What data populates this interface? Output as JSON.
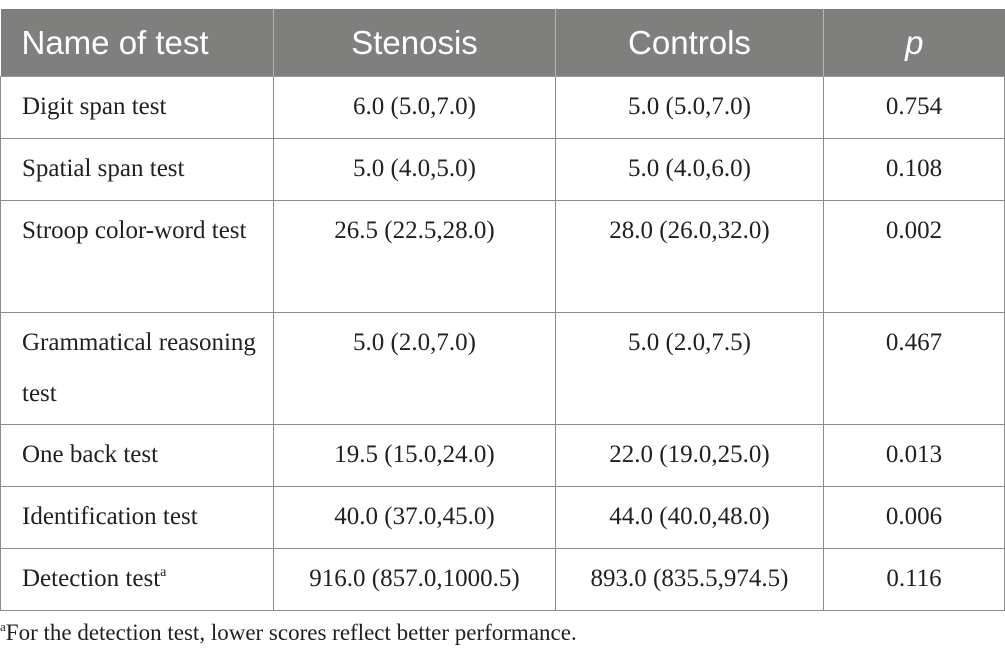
{
  "table": {
    "headers": [
      "Name of test",
      "Stenosis",
      "Controls",
      "p"
    ],
    "rows": [
      {
        "name": "Digit span test",
        "name_sup": "",
        "stenosis": "6.0 (5.0,7.0)",
        "controls": "5.0 (5.0,7.0)",
        "p": "0.754"
      },
      {
        "name": "Spatial span test",
        "name_sup": "",
        "stenosis": "5.0 (4.0,5.0)",
        "controls": "5.0 (4.0,6.0)",
        "p": "0.108"
      },
      {
        "name": "Stroop color-word test",
        "name_sup": "",
        "stenosis": "26.5 (22.5,28.0)",
        "controls": "28.0 (26.0,32.0)",
        "p": "0.002"
      },
      {
        "name": "Grammatical reasoning test",
        "name_sup": "",
        "stenosis": "5.0 (2.0,7.0)",
        "controls": "5.0 (2.0,7.5)",
        "p": "0.467"
      },
      {
        "name": "One back test",
        "name_sup": "",
        "stenosis": "19.5 (15.0,24.0)",
        "controls": "22.0 (19.0,25.0)",
        "p": "0.013"
      },
      {
        "name": "Identification test",
        "name_sup": "",
        "stenosis": "40.0 (37.0,45.0)",
        "controls": "44.0 (40.0,48.0)",
        "p": "0.006"
      },
      {
        "name": "Detection test",
        "name_sup": "a",
        "stenosis": "916.0 (857.0,1000.5)",
        "controls": "893.0 (835.5,974.5)",
        "p": "0.116"
      }
    ]
  },
  "footnote": {
    "marker": "a",
    "text": "For the detection test, lower scores reflect better performance."
  }
}
